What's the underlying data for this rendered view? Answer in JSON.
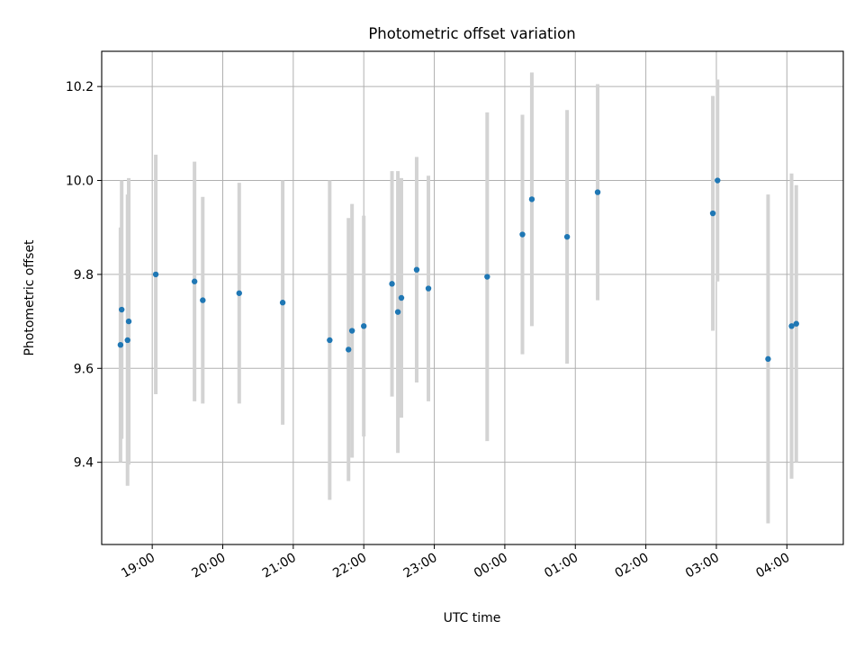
{
  "chart_data": {
    "type": "scatter",
    "title": "Photometric offset variation",
    "xlabel": "UTC time",
    "ylabel": "Photometric offset",
    "x_tick_labels": [
      "19:00",
      "20:00",
      "21:00",
      "22:00",
      "23:00",
      "00:00",
      "01:00",
      "02:00",
      "03:00",
      "04:00"
    ],
    "y_tick_labels": [
      "9.4",
      "9.6",
      "9.8",
      "10.0",
      "10.2"
    ],
    "xlim": [
      "18:17",
      "04:48"
    ],
    "ylim": [
      9.225,
      10.275
    ],
    "grid": true,
    "colors": {
      "point": "#1f77b4",
      "errorbar": "#d3d3d3",
      "grid": "#b0b0b0"
    },
    "series": [
      {
        "points": [
          {
            "x": "18:33",
            "y": 9.65,
            "err": 0.25
          },
          {
            "x": "18:34",
            "y": 9.725,
            "err": 0.275
          },
          {
            "x": "18:39",
            "y": 9.66,
            "err": 0.31
          },
          {
            "x": "18:40",
            "y": 9.7,
            "err": 0.305
          },
          {
            "x": "19:03",
            "y": 9.8,
            "err": 0.255
          },
          {
            "x": "19:36",
            "y": 9.785,
            "err": 0.255
          },
          {
            "x": "19:43",
            "y": 9.745,
            "err": 0.22
          },
          {
            "x": "20:14",
            "y": 9.76,
            "err": 0.235
          },
          {
            "x": "20:51",
            "y": 9.74,
            "err": 0.26
          },
          {
            "x": "21:31",
            "y": 9.66,
            "err": 0.34
          },
          {
            "x": "21:47",
            "y": 9.64,
            "err": 0.28
          },
          {
            "x": "21:50",
            "y": 9.68,
            "err": 0.27
          },
          {
            "x": "22:00",
            "y": 9.69,
            "err": 0.235
          },
          {
            "x": "22:24",
            "y": 9.78,
            "err": 0.24
          },
          {
            "x": "22:29",
            "y": 9.72,
            "err": 0.3
          },
          {
            "x": "22:32",
            "y": 9.75,
            "err": 0.255
          },
          {
            "x": "22:45",
            "y": 9.81,
            "err": 0.24
          },
          {
            "x": "22:55",
            "y": 9.77,
            "err": 0.24
          },
          {
            "x": "23:45",
            "y": 9.795,
            "err": 0.35
          },
          {
            "x": "00:15",
            "y": 9.885,
            "err": 0.255
          },
          {
            "x": "00:23",
            "y": 9.96,
            "err": 0.27
          },
          {
            "x": "00:53",
            "y": 9.88,
            "err": 0.27
          },
          {
            "x": "01:19",
            "y": 9.975,
            "err": 0.23
          },
          {
            "x": "02:57",
            "y": 9.93,
            "err": 0.25
          },
          {
            "x": "03:01",
            "y": 10.0,
            "err": 0.215
          },
          {
            "x": "03:44",
            "y": 9.62,
            "err": 0.35
          },
          {
            "x": "04:04",
            "y": 9.69,
            "err": 0.325
          },
          {
            "x": "04:08",
            "y": 9.695,
            "err": 0.295
          }
        ]
      }
    ]
  }
}
